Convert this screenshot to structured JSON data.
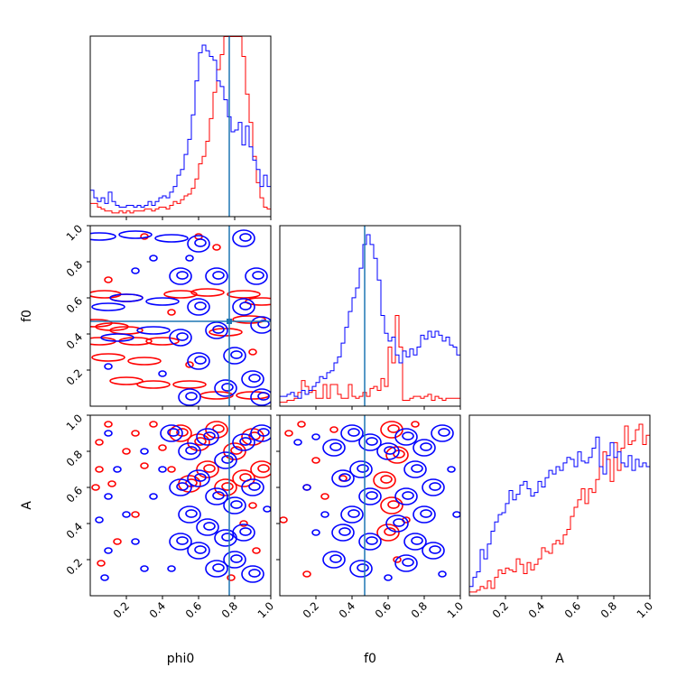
{
  "chart_data": {
    "type": "corner",
    "parameters": [
      "phi0",
      "f0",
      "A"
    ],
    "range": [
      0,
      1
    ],
    "ticks": [
      0.2,
      0.4,
      0.6,
      0.8,
      1.0
    ],
    "tick_labels": [
      "0.2",
      "0.4",
      "0.6",
      "0.8",
      "1.0"
    ],
    "truths": {
      "phi0": 0.77,
      "f0": 0.47
    },
    "truth_color": "#1f77b4",
    "series_colors": {
      "red": "#ff0000",
      "blue": "#0000ff"
    },
    "bins": 50,
    "histograms": {
      "phi0": {
        "red": [
          0.07,
          0.07,
          0.05,
          0.04,
          0.03,
          0.03,
          0.02,
          0.02,
          0.03,
          0.02,
          0.03,
          0.02,
          0.03,
          0.03,
          0.03,
          0.04,
          0.04,
          0.03,
          0.04,
          0.05,
          0.05,
          0.04,
          0.06,
          0.08,
          0.07,
          0.09,
          0.11,
          0.12,
          0.15,
          0.2,
          0.28,
          0.32,
          0.4,
          0.52,
          0.66,
          0.78,
          0.86,
          1.0,
          1.08,
          0.96,
          1.1,
          1.2,
          0.85,
          0.65,
          0.5,
          0.32,
          0.18,
          0.1,
          0.05,
          0.04
        ],
        "blue": [
          0.14,
          0.1,
          0.08,
          0.1,
          0.07,
          0.13,
          0.08,
          0.06,
          0.05,
          0.05,
          0.06,
          0.06,
          0.05,
          0.06,
          0.05,
          0.06,
          0.08,
          0.06,
          0.08,
          0.1,
          0.11,
          0.1,
          0.13,
          0.16,
          0.22,
          0.25,
          0.33,
          0.41,
          0.54,
          0.72,
          0.87,
          0.91,
          0.88,
          0.85,
          0.83,
          0.72,
          0.69,
          0.62,
          0.53,
          0.45,
          0.46,
          0.5,
          0.38,
          0.48,
          0.37,
          0.3,
          0.25,
          0.16,
          0.22,
          0.16
        ]
      },
      "f0": {
        "red": [
          0.02,
          0.02,
          0.03,
          0.03,
          0.04,
          0.07,
          0.13,
          0.1,
          0.07,
          0.08,
          0.04,
          0.04,
          0.11,
          0.04,
          0.11,
          0.11,
          0.06,
          0.04,
          0.04,
          0.11,
          0.05,
          0.04,
          0.05,
          0.07,
          0.05,
          0.09,
          0.1,
          0.08,
          0.14,
          0.1,
          0.3,
          0.22,
          0.46,
          0.3,
          0.03,
          0.03,
          0.04,
          0.05,
          0.05,
          0.04,
          0.05,
          0.06,
          0.03,
          0.05,
          0.04,
          0.03,
          0.04,
          0.04,
          0.04,
          0.04
        ],
        "blue": [
          0.05,
          0.05,
          0.06,
          0.07,
          0.05,
          0.04,
          0.08,
          0.06,
          0.08,
          0.1,
          0.12,
          0.15,
          0.14,
          0.17,
          0.18,
          0.22,
          0.25,
          0.32,
          0.4,
          0.48,
          0.55,
          0.6,
          0.7,
          0.82,
          0.87,
          0.82,
          0.75,
          0.64,
          0.46,
          0.37,
          0.33,
          0.35,
          0.26,
          0.22,
          0.28,
          0.25,
          0.29,
          0.26,
          0.3,
          0.36,
          0.34,
          0.38,
          0.35,
          0.38,
          0.36,
          0.33,
          0.35,
          0.31,
          0.3,
          0.26
        ]
      },
      "A": {
        "red": [
          0.02,
          0.02,
          0.03,
          0.05,
          0.04,
          0.08,
          0.04,
          0.1,
          0.14,
          0.12,
          0.15,
          0.14,
          0.13,
          0.2,
          0.17,
          0.12,
          0.18,
          0.14,
          0.17,
          0.2,
          0.26,
          0.24,
          0.23,
          0.28,
          0.3,
          0.28,
          0.33,
          0.36,
          0.43,
          0.48,
          0.52,
          0.58,
          0.5,
          0.58,
          0.56,
          0.63,
          0.7,
          0.78,
          0.74,
          0.62,
          0.83,
          0.68,
          0.8,
          0.92,
          0.82,
          0.84,
          0.9,
          0.93,
          0.82,
          0.87
        ],
        "blue": [
          0.05,
          0.1,
          0.13,
          0.25,
          0.2,
          0.28,
          0.35,
          0.4,
          0.44,
          0.45,
          0.5,
          0.57,
          0.52,
          0.55,
          0.6,
          0.62,
          0.58,
          0.54,
          0.56,
          0.62,
          0.59,
          0.64,
          0.68,
          0.66,
          0.7,
          0.68,
          0.72,
          0.75,
          0.74,
          0.7,
          0.78,
          0.73,
          0.72,
          0.75,
          0.8,
          0.86,
          0.7,
          0.66,
          0.76,
          0.83,
          0.75,
          0.78,
          0.72,
          0.7,
          0.76,
          0.68,
          0.74,
          0.7,
          0.72,
          0.7
        ]
      }
    },
    "contours": {
      "f0_vs_phi0": {
        "red": [
          [
            0.03,
            0.46,
            "h"
          ],
          [
            0.12,
            0.44,
            "h"
          ],
          [
            0.2,
            0.42,
            "h"
          ],
          [
            0.05,
            0.36,
            "h"
          ],
          [
            0.25,
            0.36,
            "h"
          ],
          [
            0.4,
            0.36,
            "h"
          ],
          [
            0.1,
            0.27,
            "h"
          ],
          [
            0.3,
            0.25,
            "h"
          ],
          [
            0.2,
            0.14,
            "h"
          ],
          [
            0.35,
            0.12,
            "h"
          ],
          [
            0.55,
            0.12,
            "h"
          ],
          [
            0.7,
            0.06,
            "h"
          ],
          [
            0.9,
            0.06,
            "h"
          ],
          [
            0.08,
            0.62,
            "h"
          ],
          [
            0.2,
            0.6,
            "h"
          ],
          [
            0.5,
            0.62,
            "h"
          ],
          [
            0.65,
            0.63,
            "h"
          ],
          [
            0.85,
            0.62,
            "h"
          ],
          [
            0.95,
            0.58,
            "h"
          ],
          [
            0.88,
            0.48,
            "h"
          ],
          [
            0.75,
            0.41,
            "h"
          ],
          [
            0.3,
            0.94,
            "s"
          ],
          [
            0.6,
            0.94,
            "s"
          ],
          [
            0.1,
            0.7,
            "s"
          ],
          [
            0.45,
            0.52,
            "s"
          ],
          [
            0.55,
            0.23,
            "s"
          ],
          [
            0.9,
            0.3,
            "s"
          ],
          [
            0.7,
            0.88,
            "s"
          ]
        ],
        "blue": [
          [
            0.05,
            0.94,
            "h"
          ],
          [
            0.25,
            0.95,
            "h"
          ],
          [
            0.45,
            0.93,
            "h"
          ],
          [
            0.6,
            0.9,
            "b"
          ],
          [
            0.85,
            0.93,
            "b"
          ],
          [
            0.92,
            0.72,
            "b"
          ],
          [
            0.7,
            0.72,
            "b"
          ],
          [
            0.5,
            0.72,
            "b"
          ],
          [
            0.2,
            0.6,
            "h"
          ],
          [
            0.4,
            0.58,
            "h"
          ],
          [
            0.1,
            0.55,
            "h"
          ],
          [
            0.6,
            0.55,
            "b"
          ],
          [
            0.85,
            0.55,
            "b"
          ],
          [
            0.95,
            0.45,
            "b"
          ],
          [
            0.7,
            0.42,
            "b"
          ],
          [
            0.5,
            0.38,
            "b"
          ],
          [
            0.15,
            0.38,
            "h"
          ],
          [
            0.35,
            0.42,
            "h"
          ],
          [
            0.8,
            0.28,
            "b"
          ],
          [
            0.6,
            0.25,
            "b"
          ],
          [
            0.9,
            0.15,
            "b"
          ],
          [
            0.75,
            0.1,
            "b"
          ],
          [
            0.55,
            0.05,
            "b"
          ],
          [
            0.95,
            0.05,
            "b"
          ],
          [
            0.35,
            0.82,
            "s"
          ],
          [
            0.55,
            0.82,
            "s"
          ],
          [
            0.25,
            0.75,
            "s"
          ],
          [
            0.4,
            0.18,
            "s"
          ],
          [
            0.1,
            0.22,
            "s"
          ]
        ]
      },
      "A_vs_phi0": {
        "red": [
          [
            0.05,
            0.85,
            "s"
          ],
          [
            0.1,
            0.95,
            "s"
          ],
          [
            0.2,
            0.8,
            "s"
          ],
          [
            0.05,
            0.7,
            "s"
          ],
          [
            0.03,
            0.6,
            "s"
          ],
          [
            0.12,
            0.62,
            "s"
          ],
          [
            0.25,
            0.9,
            "s"
          ],
          [
            0.3,
            0.72,
            "s"
          ],
          [
            0.35,
            0.95,
            "s"
          ],
          [
            0.4,
            0.82,
            "s"
          ],
          [
            0.45,
            0.7,
            "s"
          ],
          [
            0.5,
            0.9,
            "b"
          ],
          [
            0.6,
            0.85,
            "b"
          ],
          [
            0.7,
            0.92,
            "b"
          ],
          [
            0.8,
            0.8,
            "b"
          ],
          [
            0.9,
            0.88,
            "b"
          ],
          [
            0.95,
            0.7,
            "b"
          ],
          [
            0.85,
            0.65,
            "b"
          ],
          [
            0.75,
            0.6,
            "b"
          ],
          [
            0.65,
            0.7,
            "b"
          ],
          [
            0.55,
            0.62,
            "b"
          ],
          [
            0.9,
            0.5,
            "s"
          ],
          [
            0.85,
            0.4,
            "s"
          ],
          [
            0.92,
            0.25,
            "s"
          ],
          [
            0.78,
            0.1,
            "s"
          ],
          [
            0.06,
            0.18,
            "s"
          ],
          [
            0.25,
            0.45,
            "s"
          ],
          [
            0.15,
            0.3,
            "s"
          ]
        ],
        "blue": [
          [
            0.1,
            0.9,
            "s"
          ],
          [
            0.15,
            0.7,
            "s"
          ],
          [
            0.1,
            0.55,
            "s"
          ],
          [
            0.05,
            0.42,
            "s"
          ],
          [
            0.2,
            0.45,
            "s"
          ],
          [
            0.25,
            0.3,
            "s"
          ],
          [
            0.1,
            0.25,
            "s"
          ],
          [
            0.08,
            0.1,
            "s"
          ],
          [
            0.3,
            0.15,
            "s"
          ],
          [
            0.35,
            0.55,
            "s"
          ],
          [
            0.45,
            0.9,
            "b"
          ],
          [
            0.55,
            0.8,
            "b"
          ],
          [
            0.65,
            0.88,
            "b"
          ],
          [
            0.75,
            0.75,
            "b"
          ],
          [
            0.85,
            0.85,
            "b"
          ],
          [
            0.95,
            0.9,
            "b"
          ],
          [
            0.5,
            0.6,
            "b"
          ],
          [
            0.6,
            0.65,
            "b"
          ],
          [
            0.7,
            0.55,
            "b"
          ],
          [
            0.8,
            0.5,
            "b"
          ],
          [
            0.9,
            0.6,
            "b"
          ],
          [
            0.55,
            0.45,
            "b"
          ],
          [
            0.65,
            0.38,
            "b"
          ],
          [
            0.75,
            0.32,
            "b"
          ],
          [
            0.85,
            0.35,
            "b"
          ],
          [
            0.6,
            0.25,
            "b"
          ],
          [
            0.7,
            0.15,
            "b"
          ],
          [
            0.8,
            0.2,
            "b"
          ],
          [
            0.9,
            0.12,
            "b"
          ],
          [
            0.5,
            0.3,
            "b"
          ],
          [
            0.45,
            0.15,
            "s"
          ],
          [
            0.98,
            0.48,
            "s"
          ],
          [
            0.4,
            0.7,
            "s"
          ],
          [
            0.3,
            0.8,
            "s"
          ]
        ]
      },
      "A_vs_f0": {
        "red": [
          [
            0.05,
            0.9,
            "s"
          ],
          [
            0.12,
            0.95,
            "s"
          ],
          [
            0.2,
            0.75,
            "s"
          ],
          [
            0.15,
            0.6,
            "s"
          ],
          [
            0.25,
            0.55,
            "s"
          ],
          [
            0.3,
            0.92,
            "s"
          ],
          [
            0.35,
            0.65,
            "s"
          ],
          [
            0.62,
            0.92,
            "b"
          ],
          [
            0.65,
            0.78,
            "b"
          ],
          [
            0.58,
            0.64,
            "b"
          ],
          [
            0.62,
            0.5,
            "b"
          ],
          [
            0.6,
            0.35,
            "b"
          ],
          [
            0.65,
            0.2,
            "s"
          ],
          [
            0.02,
            0.42,
            "s"
          ],
          [
            0.15,
            0.12,
            "s"
          ],
          [
            0.7,
            0.42,
            "s"
          ],
          [
            0.75,
            0.95,
            "s"
          ]
        ],
        "blue": [
          [
            0.1,
            0.85,
            "s"
          ],
          [
            0.2,
            0.88,
            "s"
          ],
          [
            0.3,
            0.82,
            "b"
          ],
          [
            0.4,
            0.9,
            "b"
          ],
          [
            0.5,
            0.85,
            "b"
          ],
          [
            0.45,
            0.7,
            "b"
          ],
          [
            0.35,
            0.65,
            "b"
          ],
          [
            0.5,
            0.55,
            "b"
          ],
          [
            0.4,
            0.45,
            "b"
          ],
          [
            0.35,
            0.35,
            "b"
          ],
          [
            0.5,
            0.3,
            "b"
          ],
          [
            0.45,
            0.15,
            "b"
          ],
          [
            0.3,
            0.2,
            "b"
          ],
          [
            0.25,
            0.45,
            "s"
          ],
          [
            0.2,
            0.35,
            "s"
          ],
          [
            0.6,
            0.8,
            "b"
          ],
          [
            0.7,
            0.88,
            "b"
          ],
          [
            0.8,
            0.82,
            "b"
          ],
          [
            0.9,
            0.9,
            "b"
          ],
          [
            0.75,
            0.7,
            "b"
          ],
          [
            0.85,
            0.6,
            "b"
          ],
          [
            0.7,
            0.55,
            "b"
          ],
          [
            0.8,
            0.45,
            "b"
          ],
          [
            0.65,
            0.4,
            "b"
          ],
          [
            0.75,
            0.3,
            "b"
          ],
          [
            0.85,
            0.25,
            "b"
          ],
          [
            0.7,
            0.18,
            "b"
          ],
          [
            0.6,
            0.1,
            "s"
          ],
          [
            0.9,
            0.12,
            "s"
          ],
          [
            0.95,
            0.7,
            "s"
          ],
          [
            0.98,
            0.45,
            "s"
          ],
          [
            0.15,
            0.6,
            "s"
          ]
        ]
      }
    }
  }
}
